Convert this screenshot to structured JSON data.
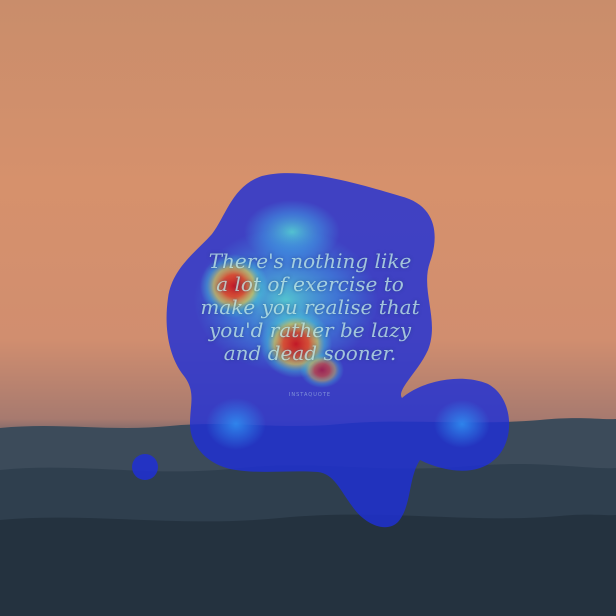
{
  "image": {
    "description_free": true,
    "quote_lines": [
      "There's nothing like",
      "a lot of exercise to",
      "make you realise that",
      "you'd rather be lazy",
      "and dead sooner."
    ],
    "credit": "INSTAQUOTE",
    "colors": {
      "sky_top": "#c98d6b",
      "sky_mid": "#d6916c",
      "hill_far": "#3e4d5c",
      "hill_near": "#22313e",
      "heat_low": "#1f2fd6",
      "heat_mid": "#3fd3e0",
      "heat_high": "#e6321e"
    }
  }
}
